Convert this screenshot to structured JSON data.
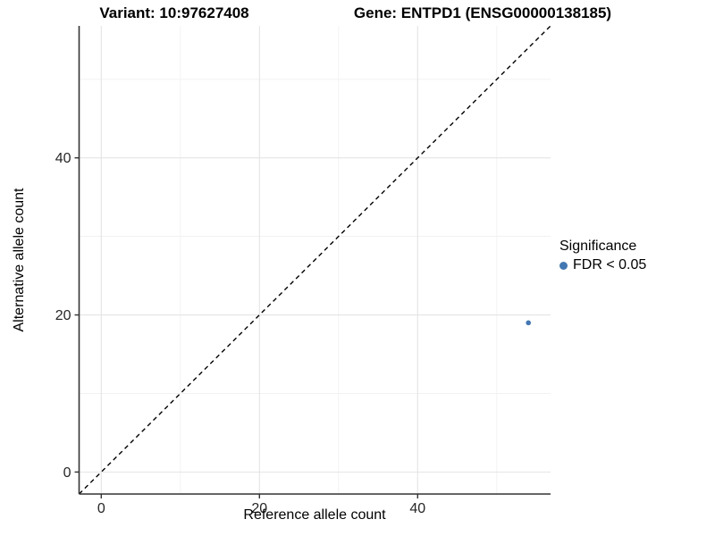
{
  "chart_data": {
    "type": "scatter",
    "title_left": "Variant: 10:97627408",
    "title_right": "Gene: ENTPD1 (ENSG00000138185)",
    "xlabel": "Reference allele count",
    "ylabel": "Alternative allele count",
    "xlim": [
      -2.8,
      56.8
    ],
    "ylim": [
      -2.8,
      56.8
    ],
    "xticks": [
      0,
      20,
      40
    ],
    "yticks": [
      0,
      20,
      40
    ],
    "minor_xticks": [
      10,
      30,
      50
    ],
    "minor_yticks": [
      10,
      30,
      50
    ],
    "grid": "major-and-minor",
    "identity_line": {
      "slope": 1,
      "intercept": 0,
      "style": "dashed",
      "color": "#000000"
    },
    "series": [
      {
        "name": "FDR < 0.05",
        "color": "#4377B2",
        "points": [
          {
            "x": 54,
            "y": 19
          }
        ]
      }
    ],
    "legend": {
      "title": "Significance",
      "position": "right"
    }
  },
  "style_colors": {
    "major_grid": "#e4e4e4",
    "minor_grid": "#f1f1f1",
    "axis_line": "#333333",
    "tick_label": "#262626"
  }
}
